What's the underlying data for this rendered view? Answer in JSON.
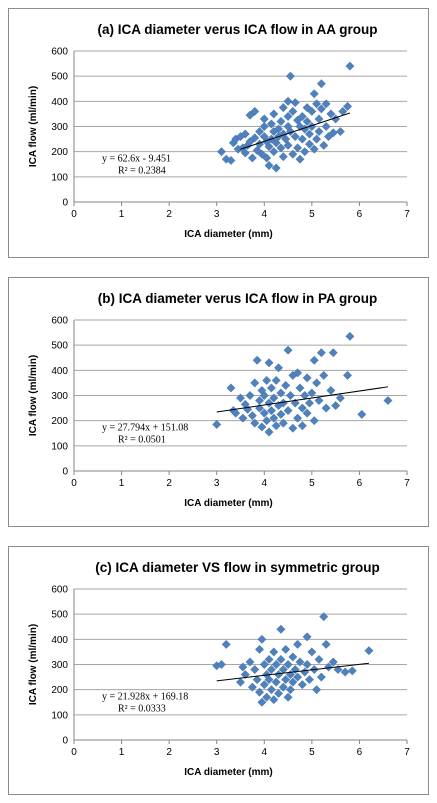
{
  "colors": {
    "marker": "#4f81bd",
    "grid": "#a6a6a6",
    "trend": "#000000"
  },
  "chart_data": [
    {
      "type": "scatter",
      "title": "(a) ICA diameter verus ICA flow in AA group",
      "xlabel": "ICA diameter (mm)",
      "ylabel": "ICA flow (ml/min)",
      "xlim": [
        0,
        7
      ],
      "ylim": [
        0,
        600
      ],
      "xticks": [
        "0",
        "1",
        "2",
        "3",
        "4",
        "5",
        "6",
        "7"
      ],
      "yticks": [
        "0",
        "100",
        "200",
        "300",
        "400",
        "500",
        "600"
      ],
      "grid": true,
      "legend": "none",
      "trendline": {
        "slope": 62.6,
        "intercept": -9.451,
        "x_range": [
          3.5,
          5.8
        ]
      },
      "equation": "y = 62.6x - 9.451",
      "r2": "R² = 0.2384",
      "points": [
        [
          3.1,
          200
        ],
        [
          3.2,
          170
        ],
        [
          3.3,
          165
        ],
        [
          3.35,
          235
        ],
        [
          3.4,
          250
        ],
        [
          3.45,
          210
        ],
        [
          3.5,
          260
        ],
        [
          3.55,
          215
        ],
        [
          3.6,
          195
        ],
        [
          3.6,
          270
        ],
        [
          3.65,
          225
        ],
        [
          3.7,
          345
        ],
        [
          3.7,
          240
        ],
        [
          3.75,
          175
        ],
        [
          3.8,
          360
        ],
        [
          3.8,
          255
        ],
        [
          3.85,
          205
        ],
        [
          3.9,
          280
        ],
        [
          3.9,
          230
        ],
        [
          3.95,
          190
        ],
        [
          4.0,
          330
        ],
        [
          4.0,
          300
        ],
        [
          4.0,
          260
        ],
        [
          4.05,
          240
        ],
        [
          4.05,
          175
        ],
        [
          4.1,
          220
        ],
        [
          4.1,
          145
        ],
        [
          4.15,
          310
        ],
        [
          4.15,
          250
        ],
        [
          4.2,
          350
        ],
        [
          4.2,
          280
        ],
        [
          4.2,
          200
        ],
        [
          4.25,
          235
        ],
        [
          4.25,
          135
        ],
        [
          4.3,
          290
        ],
        [
          4.3,
          260
        ],
        [
          4.35,
          320
        ],
        [
          4.35,
          215
        ],
        [
          4.4,
          375
        ],
        [
          4.4,
          270
        ],
        [
          4.4,
          180
        ],
        [
          4.45,
          250
        ],
        [
          4.5,
          400
        ],
        [
          4.5,
          340
        ],
        [
          4.5,
          300
        ],
        [
          4.5,
          225
        ],
        [
          4.55,
          500
        ],
        [
          4.55,
          280
        ],
        [
          4.6,
          360
        ],
        [
          4.6,
          190
        ],
        [
          4.65,
          395
        ],
        [
          4.65,
          260
        ],
        [
          4.7,
          325
        ],
        [
          4.7,
          215
        ],
        [
          4.75,
          300
        ],
        [
          4.75,
          170
        ],
        [
          4.8,
          340
        ],
        [
          4.8,
          250
        ],
        [
          4.85,
          290
        ],
        [
          4.85,
          200
        ],
        [
          4.9,
          375
        ],
        [
          4.9,
          320
        ],
        [
          4.95,
          270
        ],
        [
          4.95,
          230
        ],
        [
          5.0,
          300
        ],
        [
          5.0,
          360
        ],
        [
          5.05,
          430
        ],
        [
          5.05,
          210
        ],
        [
          5.1,
          390
        ],
        [
          5.1,
          250
        ],
        [
          5.15,
          330
        ],
        [
          5.15,
          280
        ],
        [
          5.2,
          470
        ],
        [
          5.2,
          370
        ],
        [
          5.25,
          225
        ],
        [
          5.3,
          390
        ],
        [
          5.3,
          300
        ],
        [
          5.35,
          260
        ],
        [
          5.4,
          350
        ],
        [
          5.45,
          275
        ],
        [
          5.5,
          330
        ],
        [
          5.6,
          280
        ],
        [
          5.65,
          360
        ],
        [
          5.75,
          380
        ],
        [
          5.8,
          540
        ]
      ]
    },
    {
      "type": "scatter",
      "title": "(b) ICA diameter verus ICA flow in PA group",
      "xlabel": "ICA diameter (mm)",
      "ylabel": "ICA flow (ml/min)",
      "xlim": [
        0,
        7
      ],
      "ylim": [
        0,
        600
      ],
      "xticks": [
        "0",
        "1",
        "2",
        "3",
        "4",
        "5",
        "6",
        "7"
      ],
      "yticks": [
        "0",
        "100",
        "200",
        "300",
        "400",
        "500",
        "600"
      ],
      "grid": true,
      "legend": "none",
      "trendline": {
        "slope": 27.794,
        "intercept": 151.08,
        "x_range": [
          3.0,
          6.6
        ]
      },
      "equation": "y = 27.794x + 151.08",
      "r2": "R² = 0.0501",
      "points": [
        [
          3.0,
          185
        ],
        [
          3.3,
          330
        ],
        [
          3.35,
          240
        ],
        [
          3.4,
          230
        ],
        [
          3.5,
          290
        ],
        [
          3.55,
          210
        ],
        [
          3.6,
          265
        ],
        [
          3.65,
          245
        ],
        [
          3.7,
          300
        ],
        [
          3.75,
          220
        ],
        [
          3.8,
          350
        ],
        [
          3.8,
          190
        ],
        [
          3.85,
          440
        ],
        [
          3.9,
          280
        ],
        [
          3.9,
          250
        ],
        [
          3.95,
          320
        ],
        [
          3.95,
          175
        ],
        [
          4.0,
          300
        ],
        [
          4.0,
          230
        ],
        [
          4.05,
          360
        ],
        [
          4.05,
          200
        ],
        [
          4.1,
          430
        ],
        [
          4.1,
          270
        ],
        [
          4.1,
          155
        ],
        [
          4.15,
          330
        ],
        [
          4.15,
          240
        ],
        [
          4.2,
          290
        ],
        [
          4.2,
          210
        ],
        [
          4.25,
          360
        ],
        [
          4.25,
          180
        ],
        [
          4.3,
          410
        ],
        [
          4.3,
          260
        ],
        [
          4.35,
          310
        ],
        [
          4.35,
          225
        ],
        [
          4.4,
          270
        ],
        [
          4.4,
          190
        ],
        [
          4.45,
          340
        ],
        [
          4.5,
          480
        ],
        [
          4.5,
          240
        ],
        [
          4.55,
          300
        ],
        [
          4.6,
          380
        ],
        [
          4.6,
          170
        ],
        [
          4.65,
          270
        ],
        [
          4.7,
          390
        ],
        [
          4.7,
          210
        ],
        [
          4.75,
          330
        ],
        [
          4.8,
          250
        ],
        [
          4.8,
          180
        ],
        [
          4.85,
          300
        ],
        [
          4.9,
          370
        ],
        [
          4.9,
          230
        ],
        [
          4.95,
          270
        ],
        [
          5.0,
          310
        ],
        [
          5.05,
          440
        ],
        [
          5.05,
          200
        ],
        [
          5.1,
          350
        ],
        [
          5.15,
          280
        ],
        [
          5.2,
          470
        ],
        [
          5.25,
          380
        ],
        [
          5.3,
          250
        ],
        [
          5.4,
          320
        ],
        [
          5.45,
          470
        ],
        [
          5.5,
          260
        ],
        [
          5.6,
          290
        ],
        [
          5.75,
          380
        ],
        [
          5.8,
          535
        ],
        [
          6.05,
          225
        ],
        [
          6.6,
          280
        ]
      ]
    },
    {
      "type": "scatter",
      "title": "(c) ICA diameter VS flow in symmetric group",
      "xlabel": "ICA diameter (mm)",
      "ylabel": "ICA flow (ml/min)",
      "xlim": [
        0,
        7
      ],
      "ylim": [
        0,
        600
      ],
      "xticks": [
        "0",
        "1",
        "2",
        "3",
        "4",
        "5",
        "6",
        "7"
      ],
      "yticks": [
        "0",
        "100",
        "200",
        "300",
        "400",
        "500",
        "600"
      ],
      "grid": true,
      "legend": "none",
      "trendline": {
        "slope": 21.928,
        "intercept": 169.18,
        "x_range": [
          3.0,
          6.2
        ]
      },
      "equation": "y = 21.928x + 169.18",
      "r2": "R² = 0.0333",
      "points": [
        [
          3.0,
          295
        ],
        [
          3.1,
          300
        ],
        [
          3.2,
          380
        ],
        [
          3.5,
          230
        ],
        [
          3.55,
          290
        ],
        [
          3.6,
          260
        ],
        [
          3.7,
          310
        ],
        [
          3.75,
          210
        ],
        [
          3.8,
          280
        ],
        [
          3.85,
          240
        ],
        [
          3.9,
          360
        ],
        [
          3.9,
          190
        ],
        [
          3.95,
          400
        ],
        [
          3.95,
          150
        ],
        [
          4.0,
          300
        ],
        [
          4.0,
          220
        ],
        [
          4.05,
          260
        ],
        [
          4.05,
          170
        ],
        [
          4.1,
          320
        ],
        [
          4.1,
          240
        ],
        [
          4.15,
          280
        ],
        [
          4.15,
          200
        ],
        [
          4.2,
          350
        ],
        [
          4.2,
          160
        ],
        [
          4.25,
          300
        ],
        [
          4.25,
          230
        ],
        [
          4.3,
          260
        ],
        [
          4.3,
          185
        ],
        [
          4.35,
          440
        ],
        [
          4.35,
          320
        ],
        [
          4.4,
          280
        ],
        [
          4.4,
          210
        ],
        [
          4.45,
          360
        ],
        [
          4.45,
          240
        ],
        [
          4.5,
          300
        ],
        [
          4.5,
          170
        ],
        [
          4.55,
          260
        ],
        [
          4.55,
          200
        ],
        [
          4.6,
          330
        ],
        [
          4.6,
          230
        ],
        [
          4.65,
          280
        ],
        [
          4.7,
          380
        ],
        [
          4.7,
          250
        ],
        [
          4.75,
          310
        ],
        [
          4.8,
          220
        ],
        [
          4.85,
          270
        ],
        [
          4.9,
          410
        ],
        [
          4.9,
          300
        ],
        [
          4.95,
          240
        ],
        [
          5.0,
          350
        ],
        [
          5.05,
          280
        ],
        [
          5.1,
          200
        ],
        [
          5.15,
          320
        ],
        [
          5.2,
          250
        ],
        [
          5.25,
          490
        ],
        [
          5.3,
          380
        ],
        [
          5.35,
          290
        ],
        [
          5.45,
          310
        ],
        [
          5.55,
          280
        ],
        [
          5.7,
          270
        ],
        [
          5.85,
          275
        ],
        [
          6.2,
          355
        ]
      ]
    }
  ]
}
